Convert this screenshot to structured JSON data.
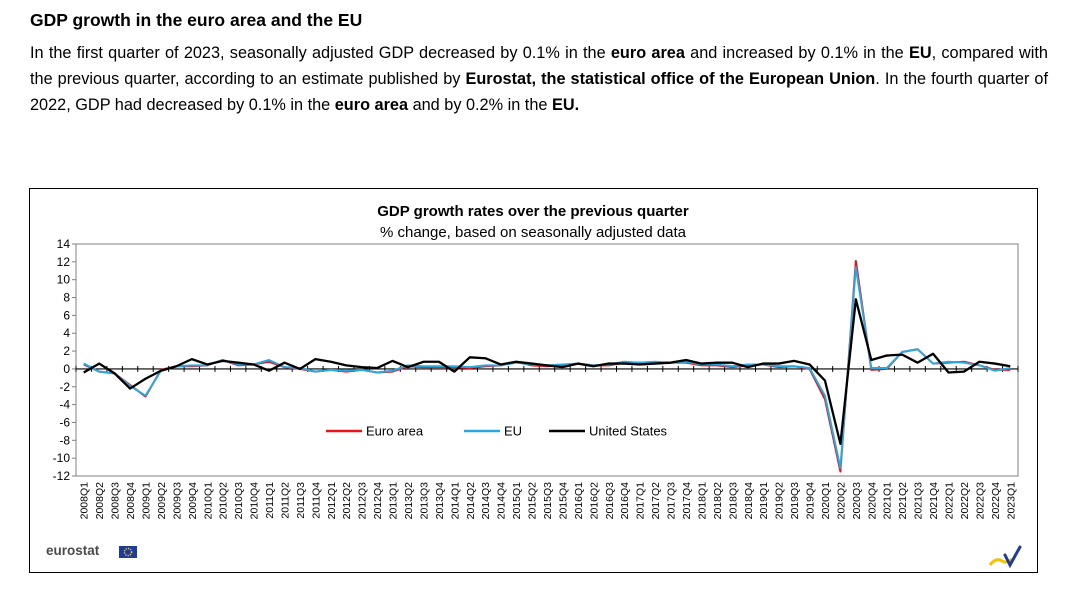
{
  "heading": "GDP growth in the euro area and the EU",
  "paragraph": [
    {
      "t": "In the first quarter of 2023, seasonally adjusted GDP decreased by 0.1% in the ",
      "b": false
    },
    {
      "t": "euro area",
      "b": true
    },
    {
      "t": " and increased by 0.1% in the ",
      "b": false
    },
    {
      "t": "EU",
      "b": true
    },
    {
      "t": ", compared with the previous quarter, according to an estimate published by ",
      "b": false
    },
    {
      "t": "Eurostat, the statistical office of the European Union",
      "b": true
    },
    {
      "t": ". In the fourth quarter of 2022, GDP had decreased by 0.1% in the ",
      "b": false
    },
    {
      "t": "euro area",
      "b": true
    },
    {
      "t": " and by 0.2% in the ",
      "b": false
    },
    {
      "t": "EU.",
      "b": true
    }
  ],
  "logo": {
    "text": "eurostat",
    "icon": "eu-flag-icon"
  },
  "corner_icon": "checkmark-swoosh-icon",
  "chart_data": {
    "type": "line",
    "title": "GDP growth rates over the previous quarter",
    "subtitle": "% change, based on seasonally adjusted data",
    "ylim": [
      -12,
      14
    ],
    "yticks": [
      14,
      12,
      10,
      8,
      6,
      4,
      2,
      0,
      -2,
      -4,
      -6,
      -8,
      -10,
      -12
    ],
    "grid": false,
    "legend_position": "bottom-center",
    "categories": [
      "2008Q1",
      "2008Q2",
      "2008Q3",
      "2008Q4",
      "2009Q1",
      "2009Q2",
      "2009Q3",
      "2009Q4",
      "2010Q1",
      "2010Q2",
      "2010Q3",
      "2010Q4",
      "2011Q1",
      "2011Q2",
      "2011Q3",
      "2011Q4",
      "2012Q1",
      "2012Q2",
      "2012Q3",
      "2012Q4",
      "2013Q1",
      "2013Q2",
      "2013Q3",
      "2013Q4",
      "2014Q1",
      "2014Q2",
      "2014Q3",
      "2014Q4",
      "2015Q1",
      "2015Q2",
      "2015Q3",
      "2015Q4",
      "2016Q1",
      "2016Q2",
      "2016Q3",
      "2016Q4",
      "2017Q1",
      "2017Q2",
      "2017Q3",
      "2017Q4",
      "2018Q1",
      "2018Q2",
      "2018Q3",
      "2018Q4",
      "2019Q1",
      "2019Q2",
      "2019Q3",
      "2019Q4",
      "2020Q1",
      "2020Q2",
      "2020Q3",
      "2020Q4",
      "2021Q1",
      "2021Q2",
      "2021Q3",
      "2021Q4",
      "2022Q1",
      "2022Q2",
      "2022Q3",
      "2022Q4",
      "2023Q1"
    ],
    "series": [
      {
        "name": "Euro area",
        "color": "#e8141c",
        "values": [
          0.5,
          -0.3,
          -0.5,
          -1.8,
          -3.1,
          -0.1,
          0.3,
          0.3,
          0.4,
          1.0,
          0.4,
          0.5,
          0.8,
          0.2,
          0.0,
          -0.3,
          -0.1,
          -0.3,
          -0.1,
          -0.4,
          -0.3,
          0.3,
          0.2,
          0.2,
          0.2,
          0.1,
          0.3,
          0.4,
          0.8,
          0.4,
          0.3,
          0.4,
          0.6,
          0.4,
          0.4,
          0.7,
          0.7,
          0.7,
          0.7,
          0.7,
          0.4,
          0.4,
          0.2,
          0.4,
          0.5,
          0.2,
          0.3,
          0.0,
          -3.4,
          -11.5,
          12.1,
          -0.1,
          0.0,
          1.9,
          2.2,
          0.6,
          0.7,
          0.8,
          0.4,
          -0.1,
          -0.1
        ]
      },
      {
        "name": "EU",
        "color": "#29a9e0",
        "values": [
          0.6,
          -0.3,
          -0.5,
          -1.9,
          -3.0,
          -0.2,
          0.3,
          0.4,
          0.4,
          1.0,
          0.5,
          0.5,
          1.0,
          0.2,
          0.1,
          -0.3,
          -0.1,
          -0.2,
          -0.1,
          -0.4,
          -0.2,
          0.4,
          0.3,
          0.3,
          0.3,
          0.2,
          0.4,
          0.4,
          0.7,
          0.5,
          0.4,
          0.5,
          0.6,
          0.4,
          0.5,
          0.8,
          0.7,
          0.8,
          0.7,
          0.8,
          0.5,
          0.5,
          0.3,
          0.5,
          0.5,
          0.3,
          0.3,
          0.1,
          -3.0,
          -11.1,
          11.4,
          0.1,
          0.1,
          1.9,
          2.2,
          0.6,
          0.8,
          0.7,
          0.4,
          -0.2,
          0.1
        ]
      },
      {
        "name": "United States",
        "color": "#000000",
        "values": [
          -0.4,
          0.6,
          -0.5,
          -2.2,
          -1.1,
          -0.2,
          0.3,
          1.1,
          0.5,
          0.9,
          0.7,
          0.5,
          -0.2,
          0.7,
          0.0,
          1.1,
          0.8,
          0.4,
          0.2,
          0.1,
          0.9,
          0.2,
          0.8,
          0.8,
          -0.3,
          1.3,
          1.2,
          0.5,
          0.8,
          0.6,
          0.4,
          0.2,
          0.6,
          0.3,
          0.6,
          0.6,
          0.5,
          0.6,
          0.7,
          1.0,
          0.6,
          0.7,
          0.7,
          0.2,
          0.6,
          0.6,
          0.9,
          0.5,
          -1.3,
          -8.4,
          7.8,
          1.0,
          1.5,
          1.6,
          0.7,
          1.7,
          -0.4,
          -0.3,
          0.8,
          0.6,
          0.3
        ]
      }
    ]
  }
}
